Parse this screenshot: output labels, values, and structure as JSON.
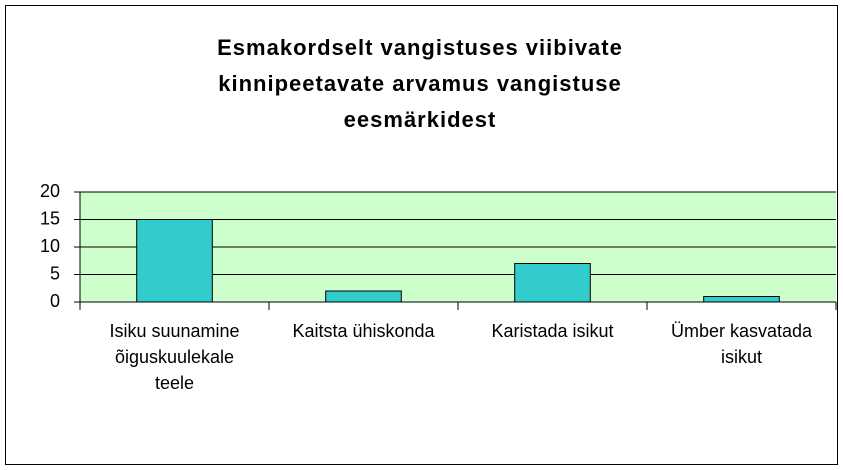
{
  "chart_data": {
    "type": "bar",
    "title": "Esmakordselt vangistuses viibivate kinnipeetavate arvamus vangistuse eesmärkidest",
    "categories": [
      "Isiku suunamine õiguskuulekale teele",
      "Kaitsta ühiskonda",
      "Karistada isikut",
      "Ümber kasvatada isikut"
    ],
    "values": [
      15,
      2,
      7,
      1
    ],
    "color": "#33cccc",
    "plot_background": "#ccffcc",
    "ylim": [
      0,
      20
    ],
    "yticks": [
      0,
      5,
      10,
      15,
      20
    ],
    "grid": true
  }
}
